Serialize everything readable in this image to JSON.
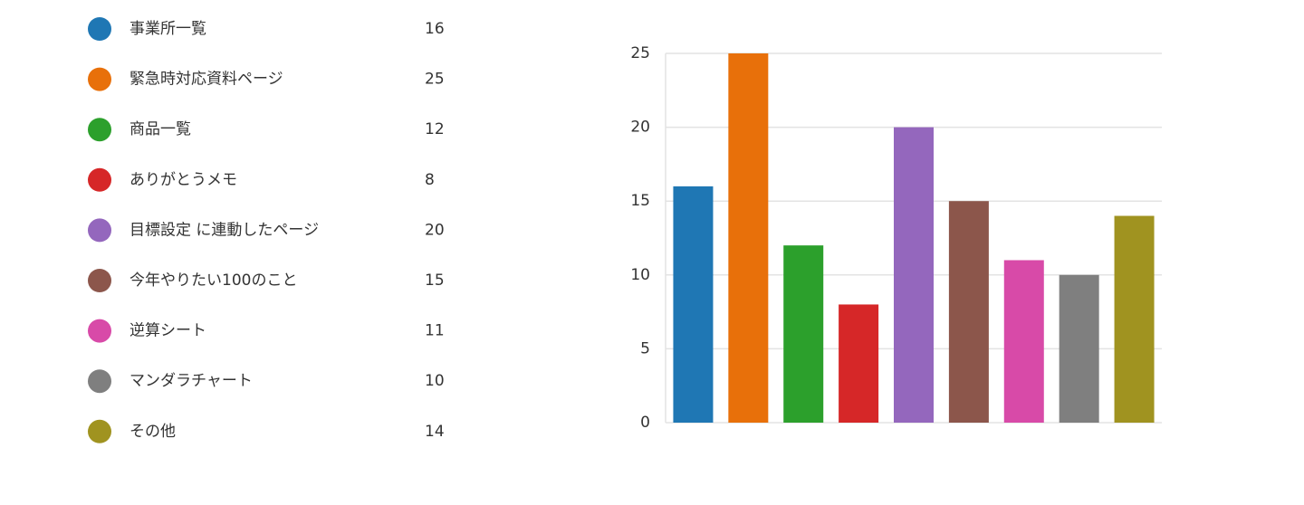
{
  "chart_data": {
    "type": "bar",
    "categories": [
      "事業所一覧",
      "緊急時対応資料ページ",
      "商品一覧",
      "ありがとうメモ",
      "目標設定 に連動したページ",
      "今年やりたい100のこと",
      "逆算シート",
      "マンダラチャート",
      "その他"
    ],
    "values": [
      16,
      25,
      12,
      8,
      20,
      15,
      11,
      10,
      14
    ],
    "colors": [
      "#1f77b4",
      "#e8700a",
      "#2ca02c",
      "#d62728",
      "#9467bd",
      "#8c564b",
      "#d84aa8",
      "#7f7f7f",
      "#a09320"
    ],
    "ylim": [
      0,
      25
    ],
    "yticks": [
      0,
      5,
      10,
      15,
      20,
      25
    ],
    "grid": true
  }
}
